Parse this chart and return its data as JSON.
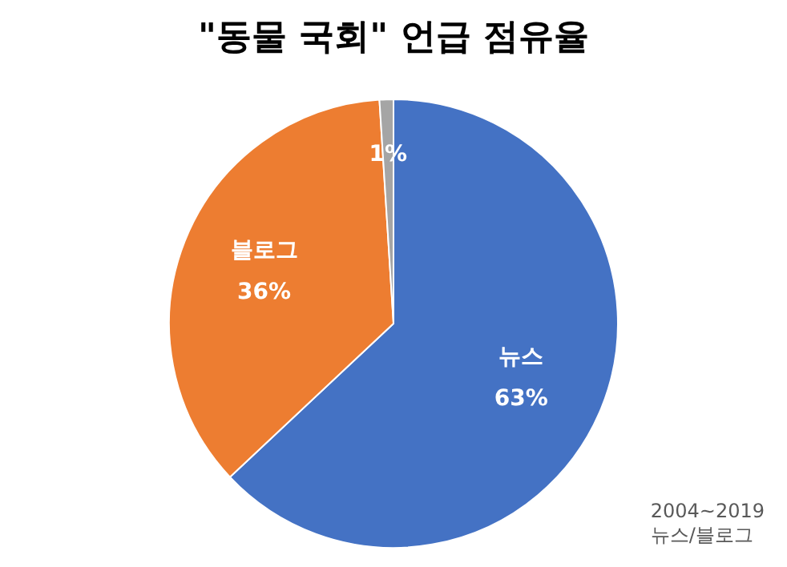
{
  "chart_data": {
    "type": "pie",
    "title": "\"동물 국회\" 언급 점유율",
    "categories": [
      "뉴스",
      "블로그",
      null
    ],
    "values": [
      63,
      36,
      1
    ],
    "colors": [
      "#4472c4",
      "#ed7d31",
      "#a5a5a5"
    ],
    "value_labels": [
      "63%",
      "36%",
      "1%"
    ],
    "annotations": [
      "2004~2019",
      "뉴스/블로그"
    ],
    "legend": false
  }
}
